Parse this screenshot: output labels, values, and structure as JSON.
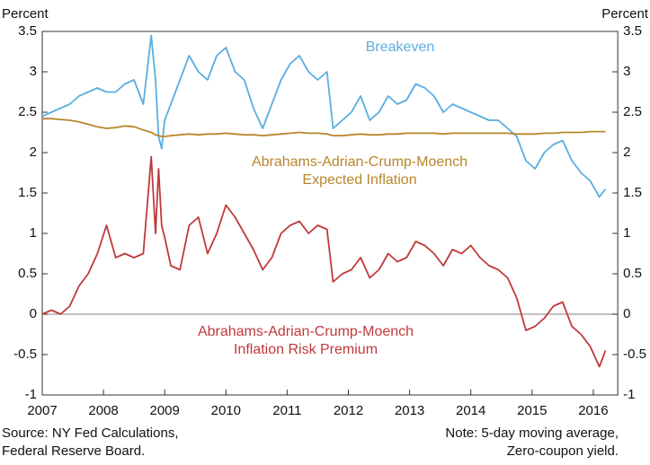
{
  "chart_data": {
    "type": "line",
    "ylabel": "Percent",
    "y2label": "Percent",
    "x": [
      2007.0,
      2007.15,
      2007.3,
      2007.45,
      2007.6,
      2007.75,
      2007.9,
      2008.05,
      2008.2,
      2008.35,
      2008.5,
      2008.65,
      2008.78,
      2008.85,
      2008.9,
      2008.95,
      2009.0,
      2009.1,
      2009.25,
      2009.4,
      2009.55,
      2009.7,
      2009.85,
      2010.0,
      2010.15,
      2010.3,
      2010.45,
      2010.6,
      2010.75,
      2010.9,
      2011.05,
      2011.2,
      2011.35,
      2011.5,
      2011.65,
      2011.75,
      2011.9,
      2012.05,
      2012.2,
      2012.35,
      2012.5,
      2012.65,
      2012.8,
      2012.95,
      2013.1,
      2013.25,
      2013.4,
      2013.55,
      2013.7,
      2013.85,
      2014.0,
      2014.15,
      2014.3,
      2014.45,
      2014.6,
      2014.75,
      2014.9,
      2015.05,
      2015.2,
      2015.35,
      2015.5,
      2015.65,
      2015.8,
      2015.95,
      2016.1,
      2016.2
    ],
    "series": [
      {
        "name": "Breakeven",
        "color": "#5aaee0",
        "values": [
          2.45,
          2.5,
          2.55,
          2.6,
          2.7,
          2.75,
          2.8,
          2.75,
          2.75,
          2.85,
          2.9,
          2.6,
          3.45,
          2.9,
          2.2,
          2.05,
          2.4,
          2.6,
          2.9,
          3.2,
          3.0,
          2.9,
          3.2,
          3.3,
          3.0,
          2.9,
          2.55,
          2.3,
          2.6,
          2.9,
          3.1,
          3.2,
          3.0,
          2.9,
          3.0,
          2.3,
          2.4,
          2.5,
          2.7,
          2.4,
          2.5,
          2.7,
          2.6,
          2.65,
          2.85,
          2.8,
          2.7,
          2.5,
          2.6,
          2.55,
          2.5,
          2.45,
          2.4,
          2.4,
          2.3,
          2.2,
          1.9,
          1.8,
          2.0,
          2.1,
          2.15,
          1.9,
          1.75,
          1.65,
          1.45,
          1.55
        ]
      },
      {
        "name": "Abrahams-Adrian-Crump-Moench Expected Inflation",
        "color": "#b8862a",
        "values": [
          2.42,
          2.42,
          2.41,
          2.4,
          2.38,
          2.35,
          2.32,
          2.3,
          2.31,
          2.33,
          2.32,
          2.28,
          2.25,
          2.22,
          2.21,
          2.2,
          2.2,
          2.21,
          2.22,
          2.23,
          2.22,
          2.23,
          2.23,
          2.24,
          2.23,
          2.22,
          2.22,
          2.21,
          2.22,
          2.23,
          2.24,
          2.25,
          2.24,
          2.24,
          2.23,
          2.21,
          2.21,
          2.22,
          2.23,
          2.22,
          2.22,
          2.23,
          2.23,
          2.24,
          2.24,
          2.24,
          2.24,
          2.23,
          2.24,
          2.24,
          2.24,
          2.24,
          2.24,
          2.24,
          2.24,
          2.23,
          2.23,
          2.23,
          2.24,
          2.24,
          2.25,
          2.25,
          2.25,
          2.26,
          2.26,
          2.26
        ]
      },
      {
        "name": "Abrahams-Adrian-Crump-Moench Inflation Risk Premium",
        "color": "#c0393b",
        "values": [
          0,
          0.05,
          0,
          0.1,
          0.35,
          0.5,
          0.75,
          1.1,
          0.7,
          0.75,
          0.7,
          0.75,
          1.95,
          1.0,
          1.8,
          1.1,
          0.95,
          0.6,
          0.55,
          1.1,
          1.2,
          0.75,
          1.0,
          1.35,
          1.2,
          1.0,
          0.8,
          0.55,
          0.7,
          1.0,
          1.1,
          1.15,
          1.0,
          1.1,
          1.05,
          0.4,
          0.5,
          0.55,
          0.7,
          0.45,
          0.55,
          0.75,
          0.65,
          0.7,
          0.9,
          0.85,
          0.75,
          0.6,
          0.8,
          0.75,
          0.85,
          0.7,
          0.6,
          0.55,
          0.45,
          0.2,
          -0.2,
          -0.15,
          -0.05,
          0.1,
          0.15,
          -0.15,
          -0.25,
          -0.4,
          -0.65,
          -0.45
        ]
      }
    ],
    "xlim": [
      2007,
      2016.4
    ],
    "xticks": [
      2007,
      2008,
      2009,
      2010,
      2011,
      2012,
      2013,
      2014,
      2015,
      2016
    ],
    "ylim": [
      -1,
      3.5
    ],
    "yticks": [
      -1,
      -0.5,
      0,
      0.5,
      1,
      1.5,
      2,
      2.5,
      3,
      3.5
    ],
    "y2lim": [
      -1,
      3.5
    ],
    "y2ticks": [
      -1,
      -0.5,
      0,
      0.5,
      1,
      1.5,
      2,
      2.5,
      3,
      3.5
    ],
    "hline": 0,
    "source": [
      "Source: NY Fed Calculations,",
      "Federal Reserve Board."
    ],
    "note": [
      "Note: 5-day moving average,",
      "Zero-coupon yield."
    ]
  }
}
